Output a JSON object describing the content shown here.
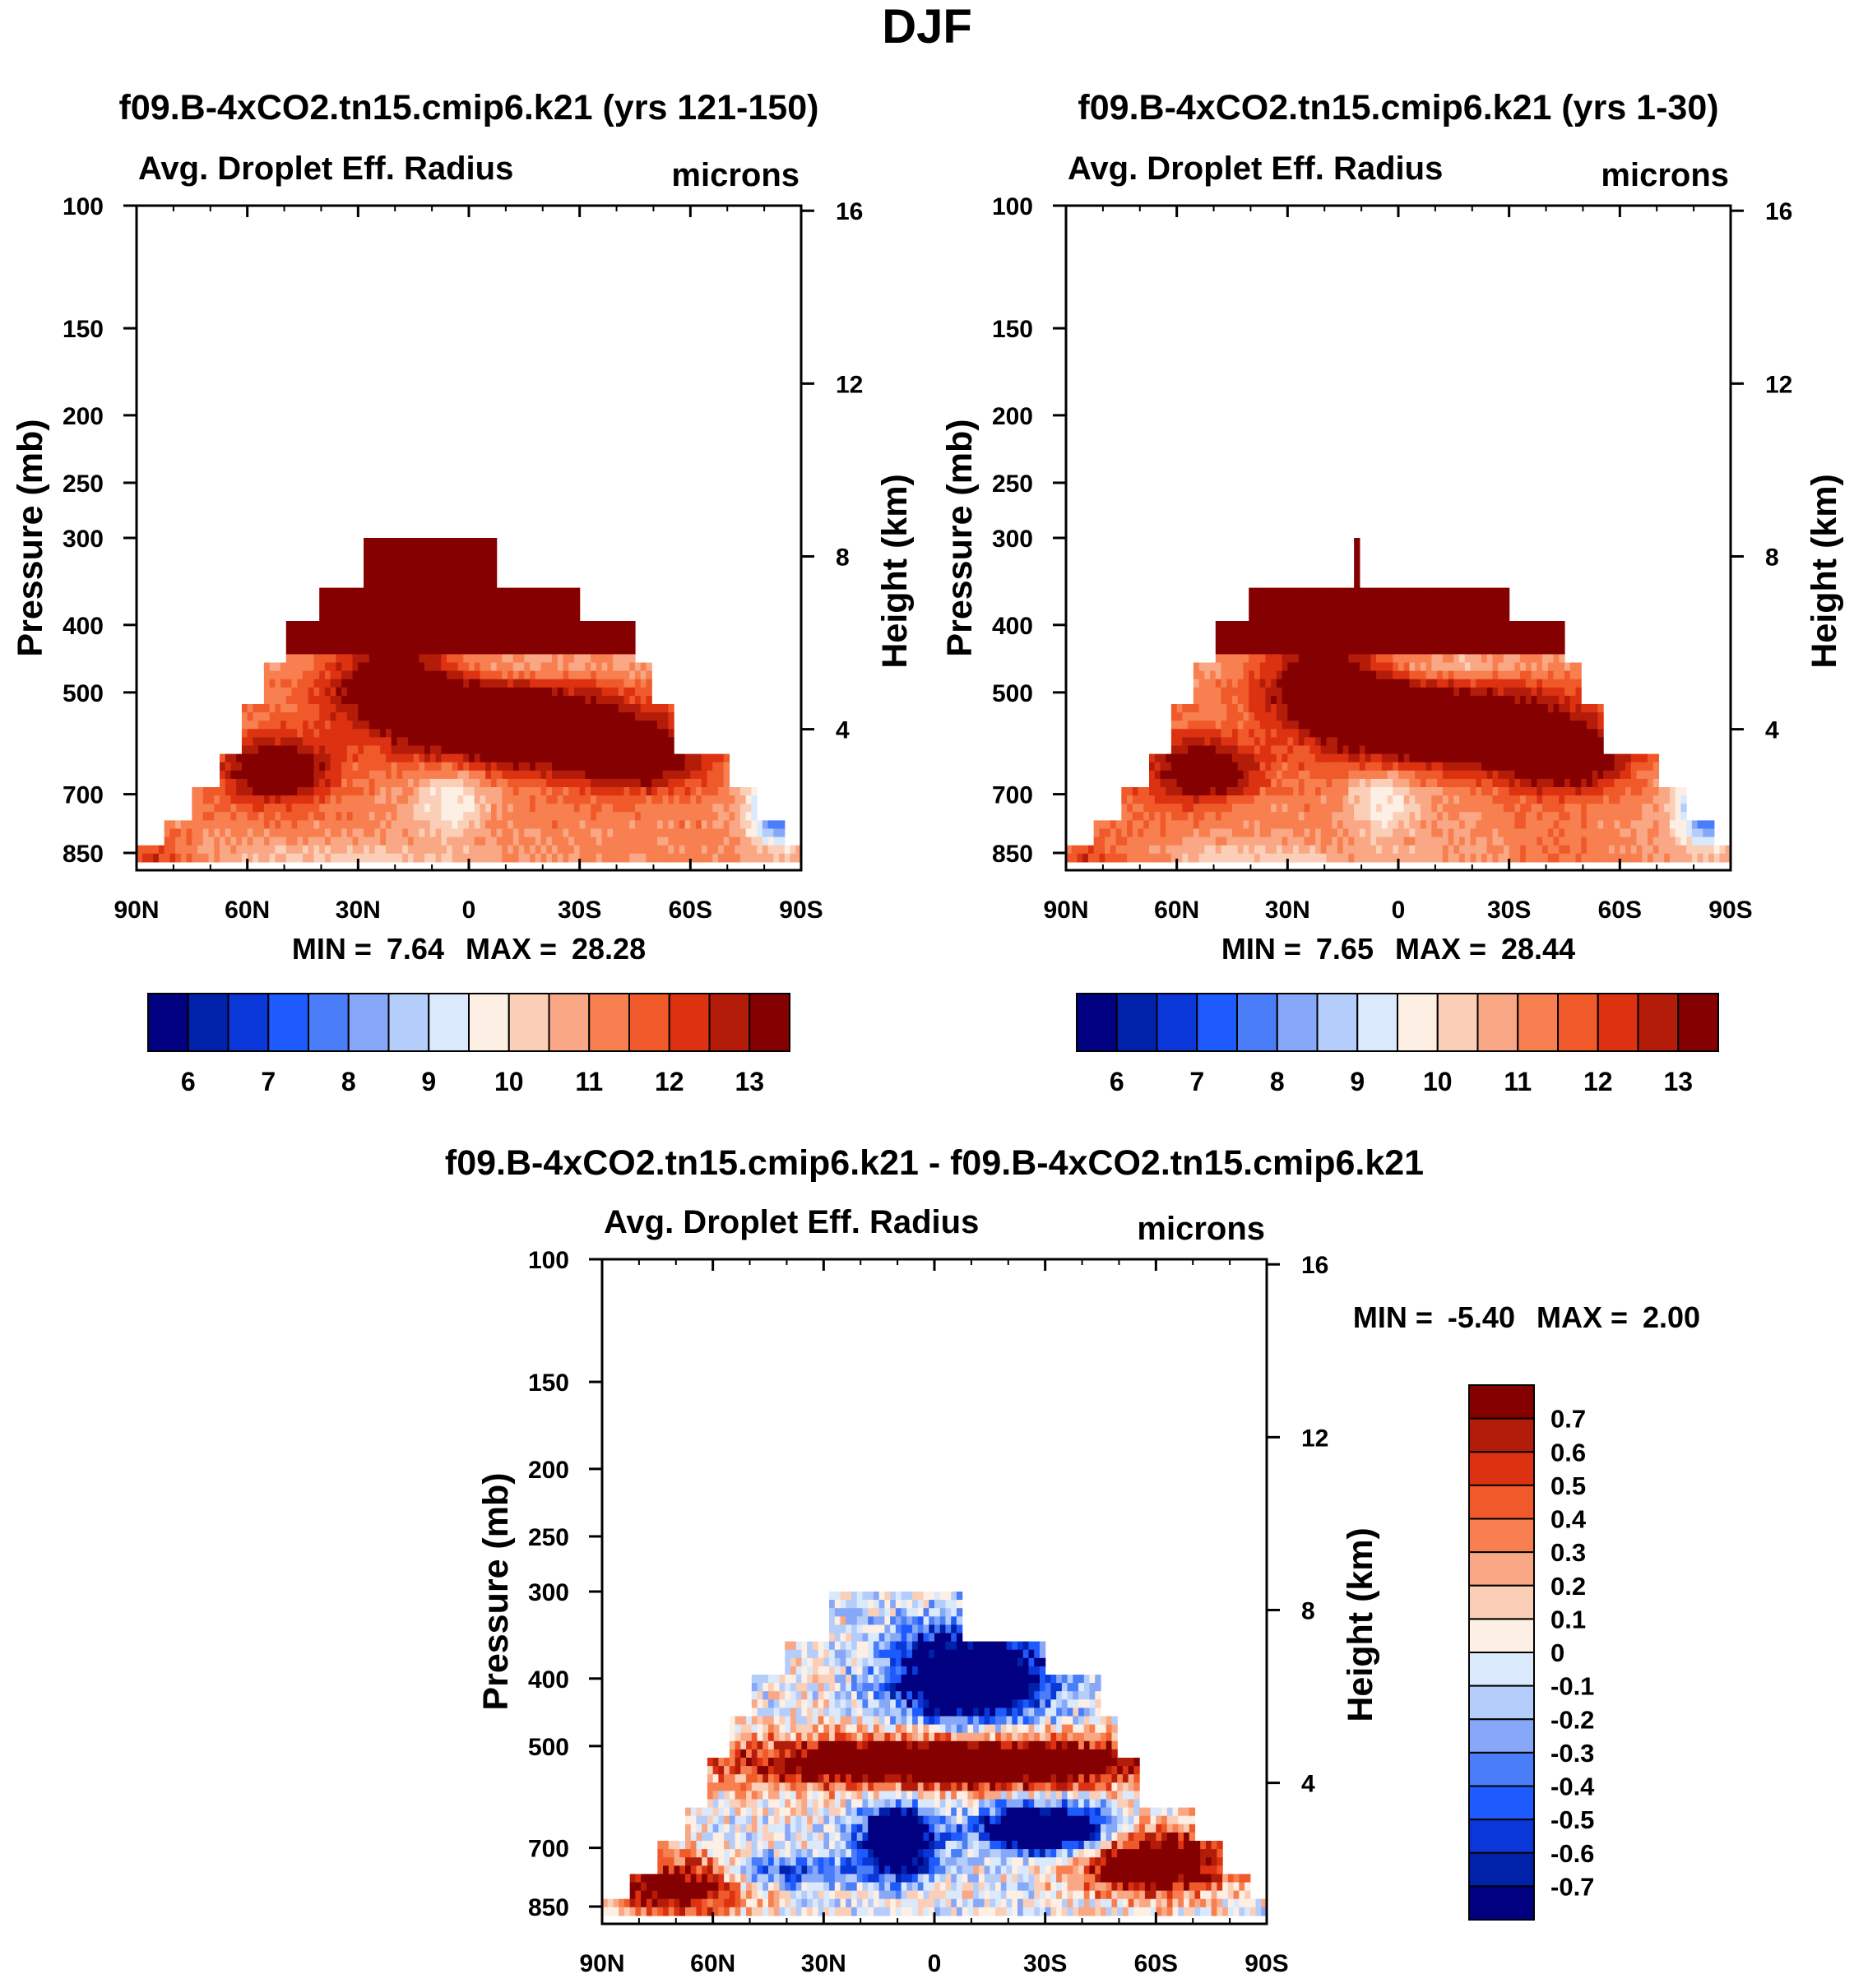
{
  "title": "DJF",
  "colors": {
    "ramp": [
      "#000080",
      "#0022aa",
      "#0a37d8",
      "#1e5bff",
      "#4a7ef8",
      "#87a7f8",
      "#b5cdfb",
      "#dbe9fd",
      "#fdefe3",
      "#fbcfb7",
      "#f9a784",
      "#f77f50",
      "#f05a2a",
      "#dd3211",
      "#b41c0a",
      "#850000"
    ],
    "mask": "#ffffff"
  },
  "chart_data": [
    {
      "id": "panel-yrs121",
      "type": "contour",
      "title": "f09.B-4xCO2.tn15.cmip6.k21 (yrs 121-150)",
      "left_label": "Avg. Droplet Eff. Radius",
      "right_label": "microns",
      "ylabel": "Pressure (mb)",
      "y2label": "Height (km)",
      "x_ticks": [
        "90N",
        "60N",
        "30N",
        "0",
        "30S",
        "60S",
        "90S"
      ],
      "y_ticks": [
        "100",
        "150",
        "200",
        "250",
        "300",
        "400",
        "500",
        "700",
        "850"
      ],
      "y2_ticks": [
        "16",
        "12",
        "8",
        "4"
      ],
      "stats": {
        "min_label": "MIN =",
        "min": "7.64",
        "max_label": "MAX =",
        "max": "28.28"
      },
      "levels": [
        5.5,
        6,
        6.5,
        7,
        7.5,
        8,
        8.5,
        9,
        9.5,
        10,
        10.5,
        11,
        11.5,
        12,
        12.5,
        13,
        13.5
      ],
      "colorbar_labels": [
        "6",
        "7",
        "8",
        "9",
        "10",
        "11",
        "12",
        "13"
      ],
      "colorbar": "horizontal"
    },
    {
      "id": "panel-yrs1",
      "type": "contour",
      "title": "f09.B-4xCO2.tn15.cmip6.k21 (yrs 1-30)",
      "left_label": "Avg. Droplet Eff. Radius",
      "right_label": "microns",
      "ylabel": "Pressure (mb)",
      "y2label": "Height (km)",
      "x_ticks": [
        "90N",
        "60N",
        "30N",
        "0",
        "30S",
        "60S",
        "90S"
      ],
      "y_ticks": [
        "100",
        "150",
        "200",
        "250",
        "300",
        "400",
        "500",
        "700",
        "850"
      ],
      "y2_ticks": [
        "16",
        "12",
        "8",
        "4"
      ],
      "stats": {
        "min_label": "MIN =",
        "min": "7.65",
        "max_label": "MAX =",
        "max": "28.44"
      },
      "levels": [
        5.5,
        6,
        6.5,
        7,
        7.5,
        8,
        8.5,
        9,
        9.5,
        10,
        10.5,
        11,
        11.5,
        12,
        12.5,
        13,
        13.5
      ],
      "colorbar_labels": [
        "6",
        "7",
        "8",
        "9",
        "10",
        "11",
        "12",
        "13"
      ],
      "colorbar": "horizontal"
    },
    {
      "id": "panel-diff",
      "type": "contour",
      "title": "f09.B-4xCO2.tn15.cmip6.k21 - f09.B-4xCO2.tn15.cmip6.k21",
      "left_label": "Avg. Droplet Eff. Radius",
      "right_label": "microns",
      "ylabel": "Pressure (mb)",
      "y2label": "Height (km)",
      "x_ticks": [
        "90N",
        "60N",
        "30N",
        "0",
        "30S",
        "60S",
        "90S"
      ],
      "y_ticks": [
        "100",
        "150",
        "200",
        "250",
        "300",
        "400",
        "500",
        "700",
        "850"
      ],
      "y2_ticks": [
        "16",
        "12",
        "8",
        "4"
      ],
      "stats": {
        "min_label": "MIN =",
        "min": "-5.40",
        "max_label": "MAX =",
        "max": "2.00"
      },
      "levels": [
        -0.8,
        -0.7,
        -0.6,
        -0.5,
        -0.4,
        -0.3,
        -0.2,
        -0.1,
        0,
        0.1,
        0.2,
        0.3,
        0.4,
        0.5,
        0.6,
        0.7,
        0.8
      ],
      "colorbar_labels": [
        "0.7",
        "0.6",
        "0.5",
        "0.4",
        "0.3",
        "0.2",
        "0.1",
        "0",
        "-0.1",
        "-0.2",
        "-0.3",
        "-0.4",
        "-0.5",
        "-0.6",
        "-0.7"
      ],
      "colorbar": "vertical"
    }
  ]
}
